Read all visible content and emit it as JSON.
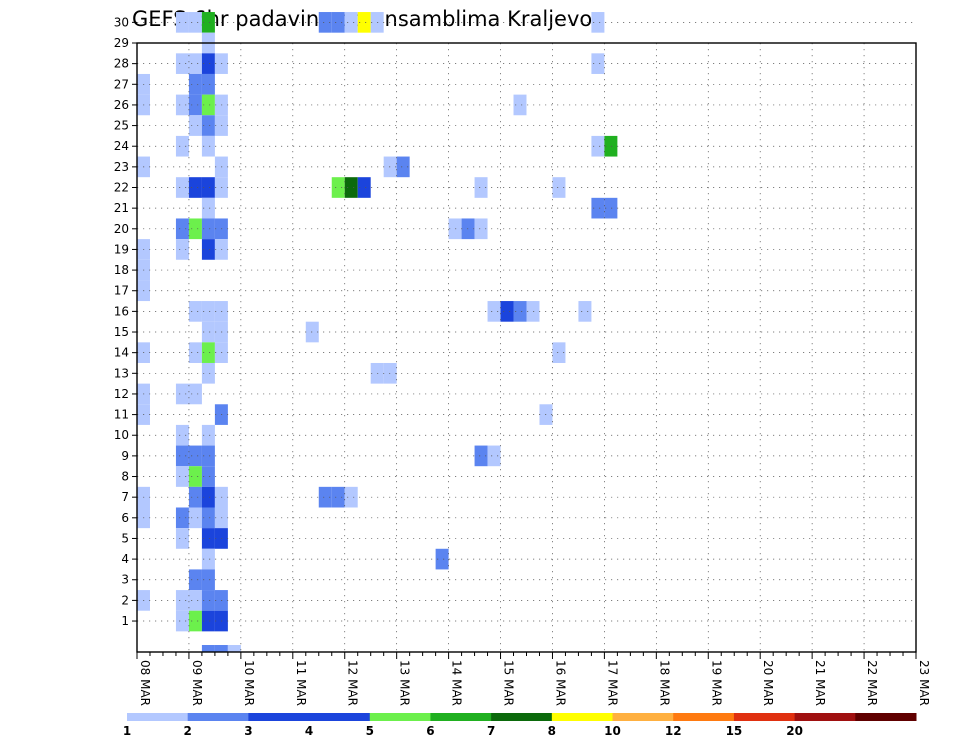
{
  "chart_data": {
    "type": "heatmap",
    "title": "GEFS 6hr padavine po ansamblima Kraljevo",
    "x_start_date": "08 MAR",
    "x_step_hours": 6,
    "x_ticks": [
      "08 MAR",
      "09 MAR",
      "10 MAR",
      "11 MAR",
      "12 MAR",
      "13 MAR",
      "14 MAR",
      "15 MAR",
      "16 MAR",
      "17 MAR",
      "18 MAR",
      "19 MAR",
      "20 MAR",
      "21 MAR",
      "22 MAR",
      "23 MAR"
    ],
    "y_ticks": [
      "1",
      "2",
      "3",
      "4",
      "5",
      "6",
      "7",
      "8",
      "9",
      "10",
      "11",
      "12",
      "13",
      "14",
      "15",
      "16",
      "17",
      "18",
      "19",
      "20",
      "21",
      "22",
      "23",
      "24",
      "25",
      "26",
      "27",
      "28",
      "29",
      "30"
    ],
    "ylim": [
      1,
      30
    ],
    "grid": true,
    "legend": {
      "position": "bottom",
      "labels": [
        "1",
        "2",
        "3",
        "4",
        "5",
        "6",
        "7",
        "8",
        "10",
        "12",
        "15",
        "20"
      ],
      "colors": [
        "#b3c8ff",
        "#5b84f0",
        "#1b44dc",
        "#1b44dc",
        "#6cf04c",
        "#20b020",
        "#0b6a0b",
        "#ffff00",
        "#ffb040",
        "#ff7a10",
        "#e03010",
        "#a01010",
        "#600000"
      ]
    },
    "cells": [
      [
        3,
        30,
        1
      ],
      [
        4,
        30,
        1
      ],
      [
        5,
        30,
        6
      ],
      [
        14,
        30,
        2
      ],
      [
        15,
        30,
        2
      ],
      [
        16,
        30,
        1
      ],
      [
        17,
        30,
        8
      ],
      [
        18,
        30,
        1
      ],
      [
        35,
        30,
        1
      ],
      [
        5,
        29,
        1
      ],
      [
        3,
        28,
        1
      ],
      [
        4,
        28,
        1
      ],
      [
        5,
        28,
        3
      ],
      [
        6,
        28,
        1
      ],
      [
        35,
        28,
        1
      ],
      [
        0,
        27,
        1
      ],
      [
        4,
        27,
        2
      ],
      [
        5,
        27,
        2
      ],
      [
        0,
        26,
        1
      ],
      [
        3,
        26,
        1
      ],
      [
        4,
        26,
        2
      ],
      [
        5,
        26,
        5
      ],
      [
        6,
        26,
        1
      ],
      [
        29,
        26,
        1
      ],
      [
        4,
        25,
        1
      ],
      [
        5,
        25,
        2
      ],
      [
        6,
        25,
        1
      ],
      [
        3,
        24,
        1
      ],
      [
        5,
        24,
        1
      ],
      [
        35,
        24,
        1
      ],
      [
        36,
        24,
        6
      ],
      [
        0,
        23,
        1
      ],
      [
        6,
        23,
        1
      ],
      [
        19,
        23,
        1
      ],
      [
        20,
        23,
        2
      ],
      [
        3,
        22,
        1
      ],
      [
        4,
        22,
        3
      ],
      [
        5,
        22,
        3
      ],
      [
        6,
        22,
        1
      ],
      [
        15,
        22,
        5
      ],
      [
        16,
        22,
        7
      ],
      [
        17,
        22,
        3
      ],
      [
        26,
        22,
        1
      ],
      [
        32,
        22,
        1
      ],
      [
        5,
        21,
        1
      ],
      [
        35,
        21,
        2
      ],
      [
        36,
        21,
        2
      ],
      [
        3,
        20,
        2
      ],
      [
        4,
        20,
        5
      ],
      [
        5,
        20,
        2
      ],
      [
        6,
        20,
        2
      ],
      [
        24,
        20,
        1
      ],
      [
        25,
        20,
        2
      ],
      [
        26,
        20,
        1
      ],
      [
        0,
        19,
        1
      ],
      [
        3,
        19,
        1
      ],
      [
        5,
        19,
        3
      ],
      [
        6,
        19,
        1
      ],
      [
        0,
        18,
        1
      ],
      [
        0,
        17,
        1
      ],
      [
        4,
        16,
        1
      ],
      [
        5,
        16,
        1
      ],
      [
        6,
        16,
        1
      ],
      [
        27,
        16,
        1
      ],
      [
        28,
        16,
        3
      ],
      [
        29,
        16,
        2
      ],
      [
        30,
        16,
        1
      ],
      [
        34,
        16,
        1
      ],
      [
        5,
        15,
        1
      ],
      [
        6,
        15,
        1
      ],
      [
        13,
        15,
        1
      ],
      [
        0,
        14,
        1
      ],
      [
        4,
        14,
        1
      ],
      [
        5,
        14,
        5
      ],
      [
        6,
        14,
        1
      ],
      [
        32,
        14,
        1
      ],
      [
        5,
        13,
        1
      ],
      [
        18,
        13,
        1
      ],
      [
        19,
        13,
        1
      ],
      [
        0,
        12,
        1
      ],
      [
        3,
        12,
        1
      ],
      [
        4,
        12,
        1
      ],
      [
        0,
        11,
        1
      ],
      [
        6,
        11,
        2
      ],
      [
        31,
        11,
        1
      ],
      [
        3,
        10,
        1
      ],
      [
        5,
        10,
        1
      ],
      [
        3,
        9,
        2
      ],
      [
        4,
        9,
        2
      ],
      [
        5,
        9,
        2
      ],
      [
        26,
        9,
        2
      ],
      [
        27,
        9,
        1
      ],
      [
        3,
        8,
        1
      ],
      [
        4,
        8,
        5
      ],
      [
        5,
        8,
        2
      ],
      [
        0,
        7,
        1
      ],
      [
        4,
        7,
        2
      ],
      [
        5,
        7,
        3
      ],
      [
        6,
        7,
        1
      ],
      [
        14,
        7,
        2
      ],
      [
        15,
        7,
        2
      ],
      [
        16,
        7,
        1
      ],
      [
        0,
        6,
        1
      ],
      [
        3,
        6,
        2
      ],
      [
        4,
        6,
        1
      ],
      [
        5,
        6,
        2
      ],
      [
        6,
        6,
        1
      ],
      [
        3,
        5,
        1
      ],
      [
        5,
        5,
        3
      ],
      [
        6,
        5,
        3
      ],
      [
        5,
        4,
        1
      ],
      [
        23,
        4,
        2
      ],
      [
        4,
        3,
        2
      ],
      [
        5,
        3,
        2
      ],
      [
        0,
        2,
        1
      ],
      [
        3,
        2,
        1
      ],
      [
        4,
        2,
        1
      ],
      [
        5,
        2,
        2
      ],
      [
        6,
        2,
        2
      ],
      [
        3,
        1,
        1
      ],
      [
        4,
        1,
        5
      ],
      [
        5,
        1,
        3
      ],
      [
        6,
        1,
        3
      ],
      [
        5,
        0,
        2
      ],
      [
        6,
        0,
        2
      ],
      [
        7,
        0,
        1
      ]
    ],
    "level_colors": [
      "#ffffff",
      "#b3c8ff",
      "#5b84f0",
      "#1b44dc",
      "#1b44dc",
      "#6cf04c",
      "#20b020",
      "#0b6a0b",
      "#ffff00"
    ]
  }
}
